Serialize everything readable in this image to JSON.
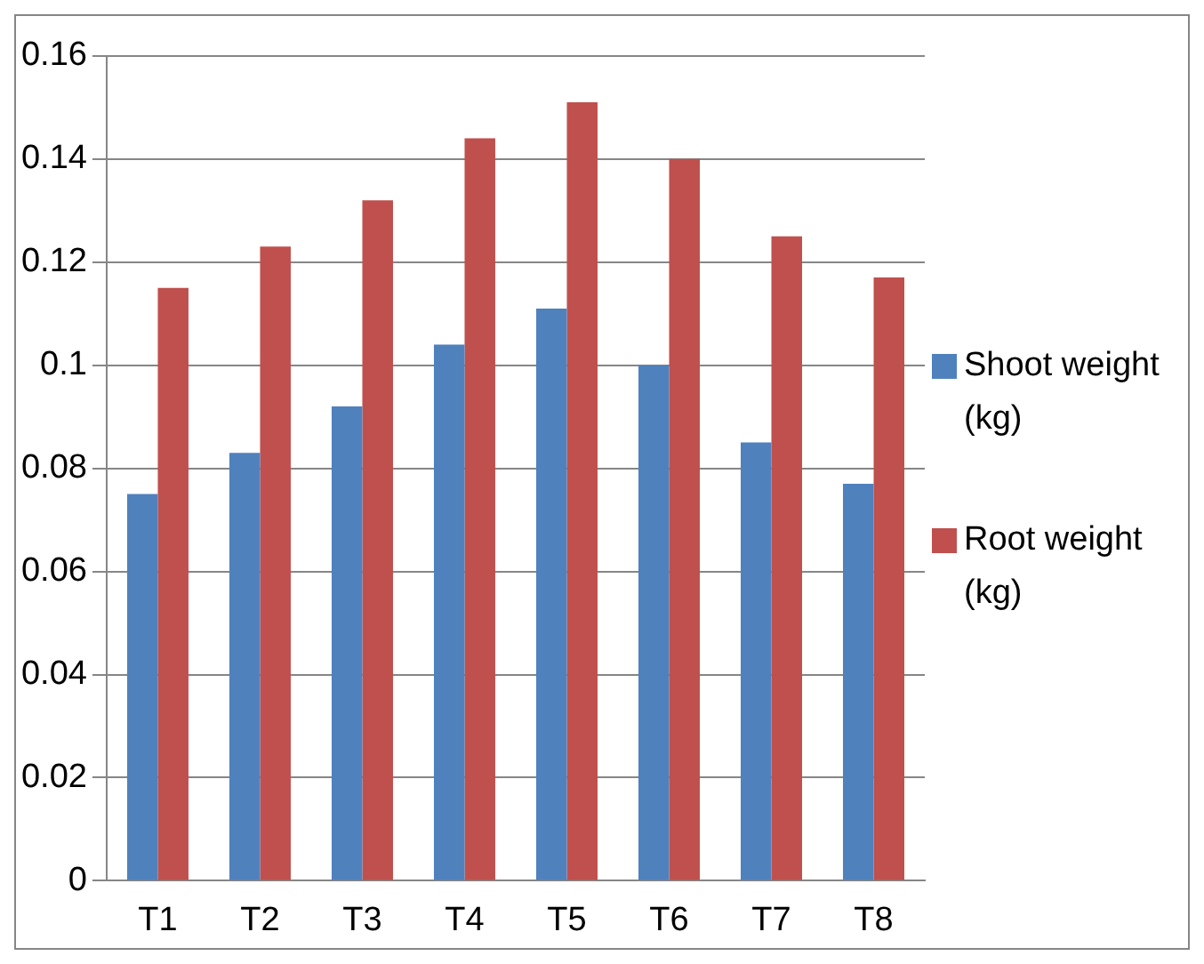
{
  "chart_data": {
    "type": "bar",
    "categories": [
      "T1",
      "T2",
      "T3",
      "T4",
      "T5",
      "T6",
      "T7",
      "T8"
    ],
    "series": [
      {
        "name": "Shoot weight (kg)",
        "color": "#4f81bd",
        "values": [
          0.075,
          0.083,
          0.092,
          0.104,
          0.111,
          0.1,
          0.085,
          0.077
        ]
      },
      {
        "name": "Root weight (kg)",
        "color": "#c0504d",
        "values": [
          0.115,
          0.123,
          0.132,
          0.144,
          0.151,
          0.14,
          0.125,
          0.117
        ]
      }
    ],
    "ylim": [
      0,
      0.16
    ],
    "yticks": [
      0,
      0.02,
      0.04,
      0.06,
      0.08,
      0.1,
      0.12,
      0.14,
      0.16
    ],
    "grid": "y",
    "legend": "right"
  }
}
